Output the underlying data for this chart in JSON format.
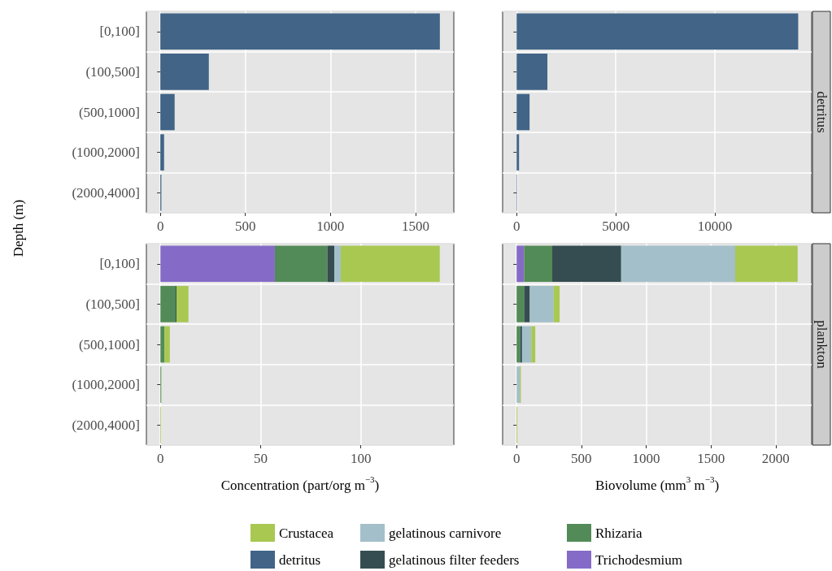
{
  "chart_data": [
    {
      "type": "bar",
      "orientation": "horizontal",
      "ylabel": "Depth (m)",
      "categories": [
        "[0,100]",
        "(100,500]",
        "(500,1000]",
        "(1000,2000]",
        "(2000,4000]"
      ],
      "series": [
        {
          "name": "detritus",
          "color": "#416487",
          "values": [
            1643,
            285,
            84,
            22,
            6
          ]
        }
      ],
      "xlim": [
        -82,
        1725
      ],
      "xticks": [
        0,
        500,
        1000,
        1500
      ],
      "grid": true,
      "legend": "bottom"
    },
    {
      "type": "bar",
      "orientation": "horizontal",
      "title": "detritus",
      "categories": [
        "[0,100]",
        "(100,500]",
        "(500,1000]",
        "(1000,2000]",
        "(2000,4000]"
      ],
      "series": [
        {
          "color": "#416487",
          "values": [
            14200,
            1550,
            650,
            120,
            20
          ]
        }
      ],
      "xlim": [
        -709,
        14879
      ],
      "xticks": [
        0,
        5000,
        10000
      ],
      "grid": true,
      "tick_labels": "x"
    },
    {
      "type": "bar",
      "orientation": "horizontal",
      "stacked": true,
      "xlabel": "Concentration (part/org m$^{−3}$)",
      "categories": [
        "[0,100]",
        "(100,500]",
        "(500,1000]",
        "(1000,2000]",
        "(2000,4000]"
      ],
      "series": [
        {
          "name": "Trichodesmium",
          "color": "#856bc7",
          "values": [
            57.1,
            0,
            0,
            0,
            0
          ]
        },
        {
          "name": "Rhizaria",
          "color": "#528b57",
          "values": [
            26.2,
            7.6,
            2.0,
            0.4,
            0
          ]
        },
        {
          "name": "gelatinous filter feeders",
          "color": "#354d50",
          "values": [
            3.5,
            0.4,
            0,
            0,
            0
          ]
        },
        {
          "name": "gelatinous carnivore",
          "color": "#a3bfca",
          "values": [
            3.2,
            0,
            0,
            0,
            0
          ]
        },
        {
          "name": "Crustacea",
          "color": "#a8c852",
          "values": [
            49.4,
            6.0,
            2.7,
            0.1,
            0.3
          ]
        }
      ],
      "xlim": [
        -7,
        146.4
      ],
      "xticks": [
        0,
        50,
        100
      ],
      "grid": true,
      "legend": "bottom"
    },
    {
      "type": "bar",
      "orientation": "horizontal",
      "stacked": true,
      "title": "plankton",
      "xlabel": "Biovolume (mm$^{3}$ m$^{−3}$)",
      "categories": [
        "[0,100]",
        "(100,500]",
        "(500,1000]",
        "(1000,2000]",
        "(2000,4000]"
      ],
      "series": [
        {
          "name": "Trichodesmium",
          "color": "#856bc7",
          "values": [
            58,
            0,
            0,
            0,
            0
          ]
        },
        {
          "name": "Rhizaria",
          "color": "#528b57",
          "values": [
            217,
            58,
            29,
            0,
            0
          ]
        },
        {
          "name": "gelatinous filter feeders",
          "color": "#354d50",
          "values": [
            532,
            44,
            13,
            0,
            0
          ]
        },
        {
          "name": "gelatinous carnivore",
          "color": "#a3bfca",
          "values": [
            880,
            184,
            71,
            25,
            0
          ]
        },
        {
          "name": "Crustacea",
          "color": "#a8c852",
          "values": [
            482,
            46,
            31,
            8,
            6
          ]
        }
      ],
      "xlim": [
        -108,
        2277
      ],
      "xticks": [
        0,
        500,
        1000,
        1500,
        2000
      ],
      "grid": true,
      "tick_labels": "x",
      "legend": "bottom"
    }
  ]
}
